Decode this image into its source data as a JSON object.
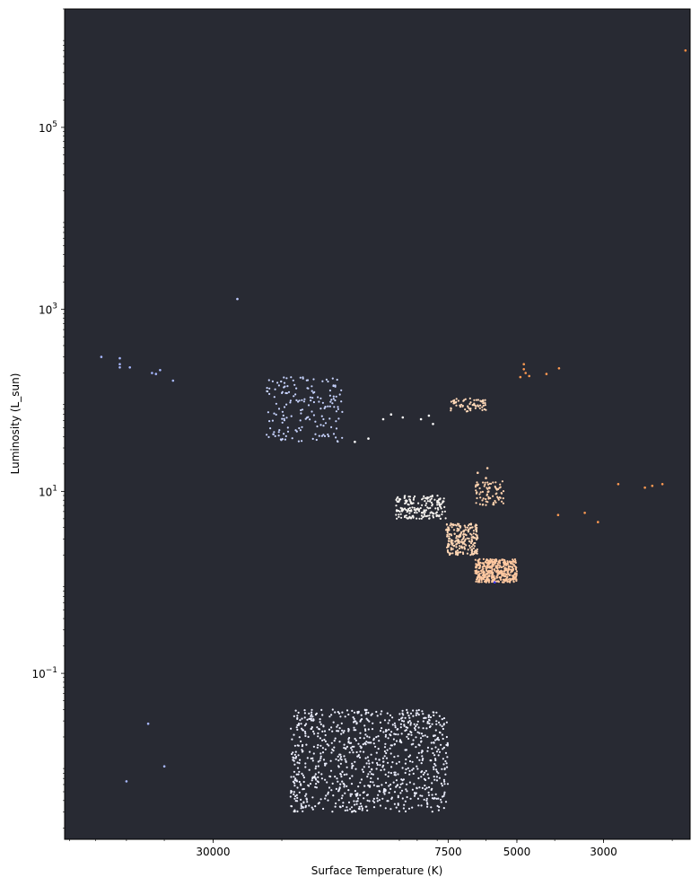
{
  "chart_data": {
    "type": "scatter",
    "title": "",
    "xlabel": "Surface Temperature (K)",
    "ylabel": "Luminosity (L_sun)",
    "x_scale": "log",
    "x_inverted": true,
    "y_scale": "log",
    "xlim": [
      72000,
      1800
    ],
    "ylim": [
      0.0015,
      2000000
    ],
    "background_color": "#282a33",
    "grid": false,
    "x_ticks": [
      {
        "value": 30000,
        "label": "30000"
      },
      {
        "value": 7500,
        "label": "7500"
      },
      {
        "value": 5000,
        "label": "5000"
      },
      {
        "value": 3000,
        "label": "3000"
      }
    ],
    "y_ticks": [
      {
        "value": 0.1,
        "base": "10",
        "exp": "−1"
      },
      {
        "value": 10,
        "base": "10",
        "exp": "1"
      },
      {
        "value": 1000,
        "base": "10",
        "exp": "3"
      },
      {
        "value": 100000,
        "base": "10",
        "exp": "5"
      }
    ],
    "clusters": [
      {
        "t_range": [
          5000,
          6400
        ],
        "l_range": [
          1.0,
          1.8
        ],
        "n": 420,
        "color": "#ffc8a0"
      },
      {
        "t_range": [
          6300,
          7600
        ],
        "l_range": [
          2.0,
          4.5
        ],
        "n": 230,
        "color": "#ffd6b4"
      },
      {
        "t_range": [
          7600,
          10200
        ],
        "l_range": [
          5.0,
          9.0
        ],
        "n": 190,
        "color": "#f6f3ef"
      },
      {
        "t_range": [
          5400,
          6400
        ],
        "l_range": [
          7.0,
          13.0
        ],
        "n": 80,
        "color": "#ffd2ae"
      },
      {
        "t_range": [
          6000,
          7400
        ],
        "l_range": [
          75.0,
          105.0
        ],
        "n": 65,
        "color": "#ffd8b8"
      },
      {
        "t_range": [
          14000,
          22000
        ],
        "l_range": [
          35.0,
          180.0
        ],
        "n": 170,
        "color": "#c8d4ff"
      },
      {
        "t_range": [
          7500,
          19000
        ],
        "l_range": [
          0.003,
          0.04
        ],
        "n": 900,
        "color": "#eef0ff"
      }
    ],
    "points": [
      {
        "t": 58000,
        "l": 300,
        "color": "#a8b8ff"
      },
      {
        "t": 52000,
        "l": 290,
        "color": "#a8b8ff"
      },
      {
        "t": 52000,
        "l": 250,
        "color": "#a8b8ff"
      },
      {
        "t": 52000,
        "l": 230,
        "color": "#a8b8ff"
      },
      {
        "t": 49000,
        "l": 230,
        "color": "#a8b8ff"
      },
      {
        "t": 43000,
        "l": 200,
        "color": "#a8b8ff"
      },
      {
        "t": 42000,
        "l": 195,
        "color": "#a8b8ff"
      },
      {
        "t": 41000,
        "l": 215,
        "color": "#a8b8ff"
      },
      {
        "t": 38000,
        "l": 165,
        "color": "#a8b8ff"
      },
      {
        "t": 26000,
        "l": 1300,
        "color": "#c0ccff"
      },
      {
        "t": 44000,
        "l": 0.028,
        "color": "#a8b8ff"
      },
      {
        "t": 40000,
        "l": 0.0095,
        "color": "#a8b8ff"
      },
      {
        "t": 50000,
        "l": 0.0065,
        "color": "#a8b8ff"
      },
      {
        "t": 11000,
        "l": 62,
        "color": "#ffffff"
      },
      {
        "t": 10500,
        "l": 70,
        "color": "#ffffff"
      },
      {
        "t": 9800,
        "l": 65,
        "color": "#ffffff"
      },
      {
        "t": 8800,
        "l": 62,
        "color": "#ffffff"
      },
      {
        "t": 8400,
        "l": 68,
        "color": "#ffffff"
      },
      {
        "t": 8200,
        "l": 55,
        "color": "#ffffff"
      },
      {
        "t": 12000,
        "l": 38,
        "color": "#ffffff"
      },
      {
        "t": 13000,
        "l": 35,
        "color": "#ffffff"
      },
      {
        "t": 6000,
        "l": 14,
        "color": "#ffd2ae"
      },
      {
        "t": 6300,
        "l": 16,
        "color": "#ffd2ae"
      },
      {
        "t": 5950,
        "l": 18,
        "color": "#ffd2ae"
      },
      {
        "t": 4800,
        "l": 220,
        "color": "#ff9a52"
      },
      {
        "t": 4750,
        "l": 200,
        "color": "#ff9a52"
      },
      {
        "t": 4900,
        "l": 180,
        "color": "#ff9a52"
      },
      {
        "t": 4650,
        "l": 185,
        "color": "#ff9a52"
      },
      {
        "t": 4800,
        "l": 250,
        "color": "#ff9a52"
      },
      {
        "t": 4200,
        "l": 195,
        "color": "#ff9a52"
      },
      {
        "t": 3900,
        "l": 225,
        "color": "#ff9a52"
      },
      {
        "t": 2750,
        "l": 12,
        "color": "#ff9a52"
      },
      {
        "t": 2350,
        "l": 11,
        "color": "#ff9a52"
      },
      {
        "t": 2250,
        "l": 11.5,
        "color": "#ff9a52"
      },
      {
        "t": 2120,
        "l": 12,
        "color": "#ff9a52"
      },
      {
        "t": 3920,
        "l": 5.5,
        "color": "#ff9a52"
      },
      {
        "t": 3350,
        "l": 5.8,
        "color": "#ff9a52"
      },
      {
        "t": 3100,
        "l": 4.6,
        "color": "#ff9a52"
      },
      {
        "t": 1850,
        "l": 700000,
        "color": "#ff8c40"
      },
      {
        "t": 5700,
        "l": 1.0,
        "color": "#3a3aff"
      }
    ]
  }
}
